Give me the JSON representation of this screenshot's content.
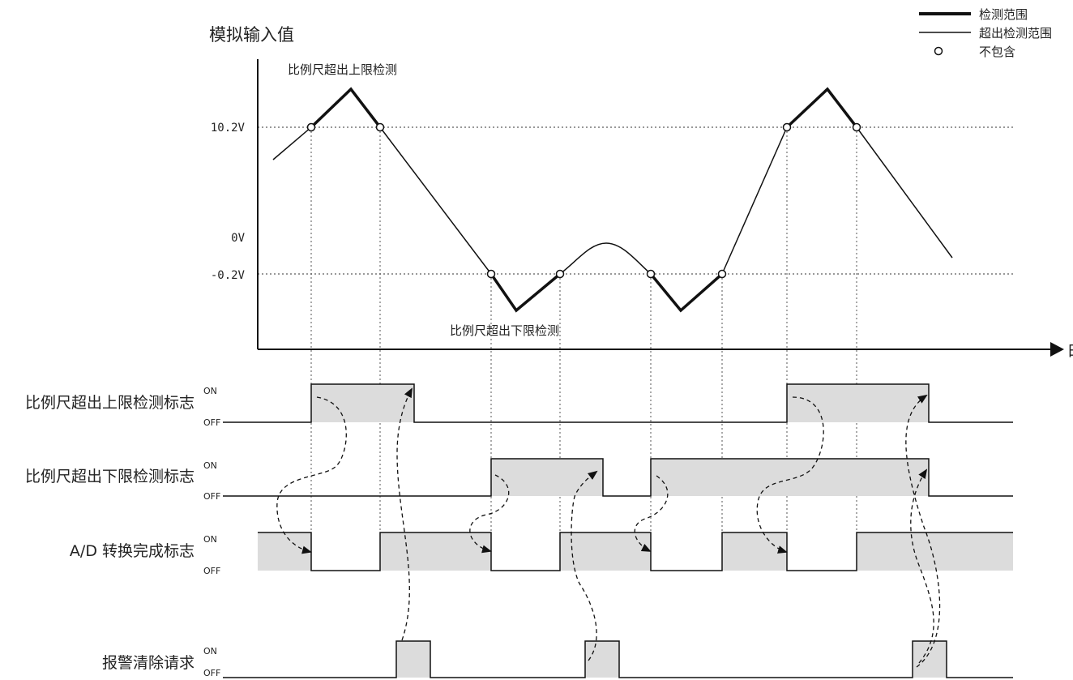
{
  "y_axis_label": "模拟输入值",
  "x_axis_label": "时间",
  "levels": {
    "high": "10.2V",
    "zero": "0V",
    "low": "-0.2V"
  },
  "annotations": {
    "upper": "比例尺超出上限检测",
    "lower": "比例尺超出下限检测"
  },
  "legend": {
    "thick": "检测范围",
    "thin": "超出检测范围",
    "circle": "不包含"
  },
  "signals": [
    {
      "name": "比例尺超出上限检测标志",
      "on": "ON",
      "off": "OFF"
    },
    {
      "name": "比例尺超出下限检测标志",
      "on": "ON",
      "off": "OFF"
    },
    {
      "name": "A/D 转换完成标志",
      "on": "ON",
      "off": "OFF"
    },
    {
      "name": "报警清除请求",
      "on": "ON",
      "off": "OFF"
    }
  ],
  "colors": {
    "fill": "#dcdcdc",
    "line": "#111111"
  }
}
